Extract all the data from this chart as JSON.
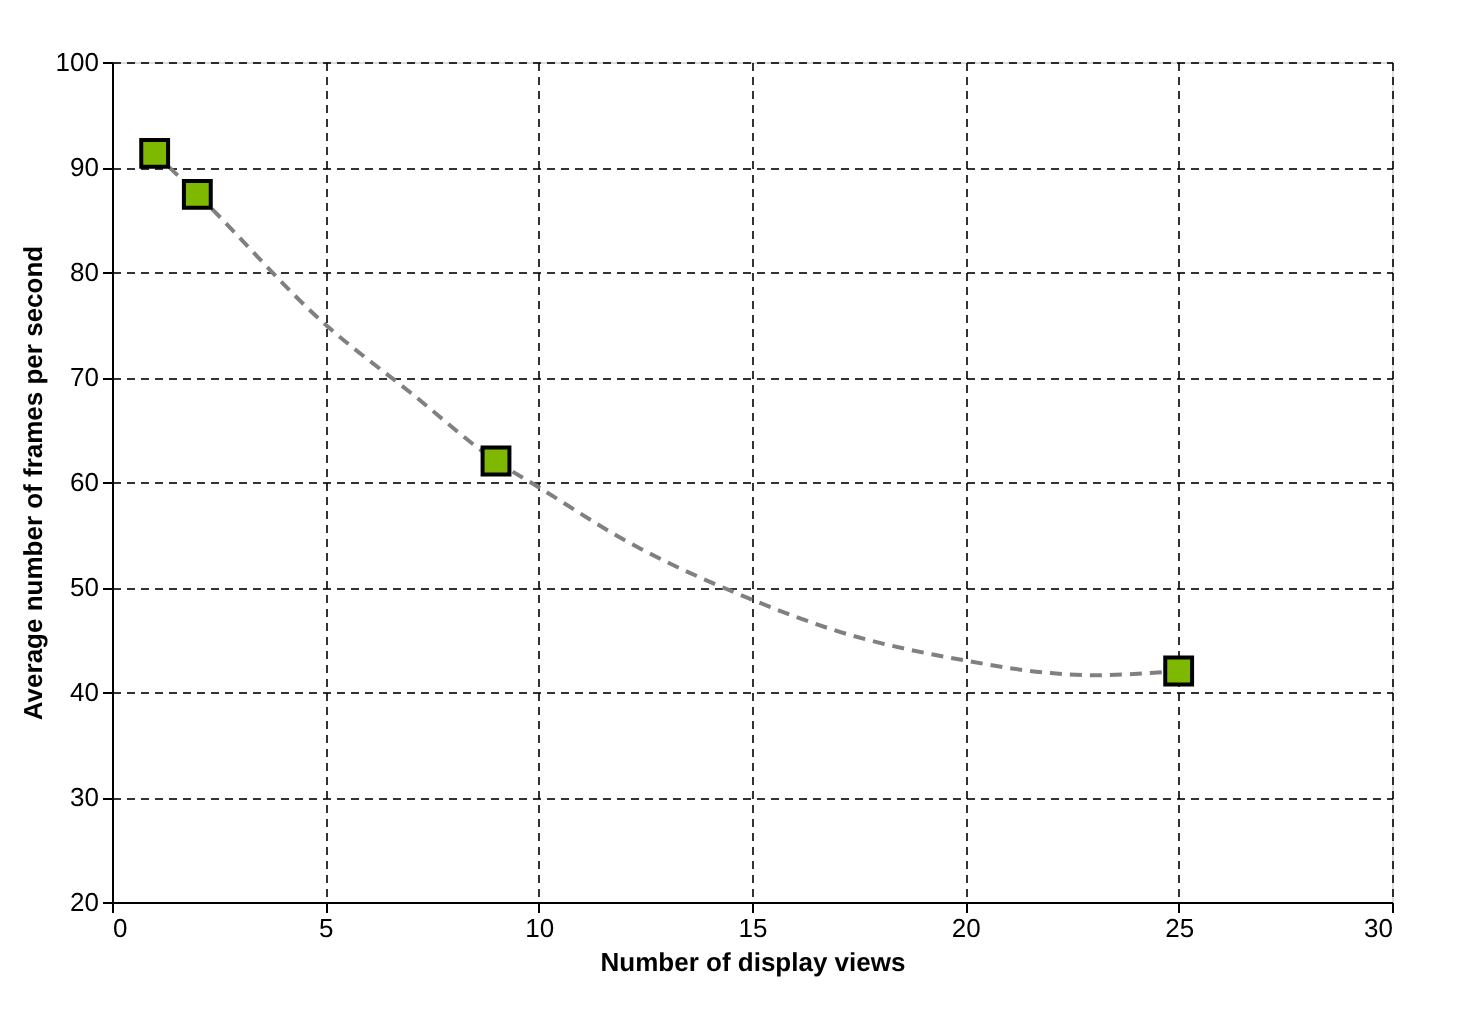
{
  "chart_data": {
    "type": "scatter",
    "xlabel": "Number of display views",
    "ylabel": "Average number of frames per second",
    "xlim": [
      0,
      30
    ],
    "xticks": [
      0,
      5,
      10,
      15,
      20,
      25,
      30
    ],
    "ylim": [
      20,
      100
    ],
    "yticks": [
      20,
      30,
      40,
      50,
      60,
      70,
      80,
      90,
      100
    ],
    "grid": true,
    "series": [
      {
        "type": "line",
        "color": "#808080",
        "line_style": "dashed",
        "marker": "none",
        "x": [
          1,
          2,
          5,
          7,
          9,
          10,
          12,
          15,
          17,
          20,
          22,
          23,
          25
        ],
        "values": [
          91.3,
          87.4,
          75,
          68.5,
          62,
          59.5,
          54.5,
          48.8,
          45.8,
          43,
          41.8,
          41.6,
          42
        ]
      },
      {
        "color": "#7fb800",
        "marker": "square",
        "x": [
          1,
          2,
          9,
          25
        ],
        "values": [
          91.3,
          87.4,
          62,
          42
        ]
      }
    ]
  }
}
